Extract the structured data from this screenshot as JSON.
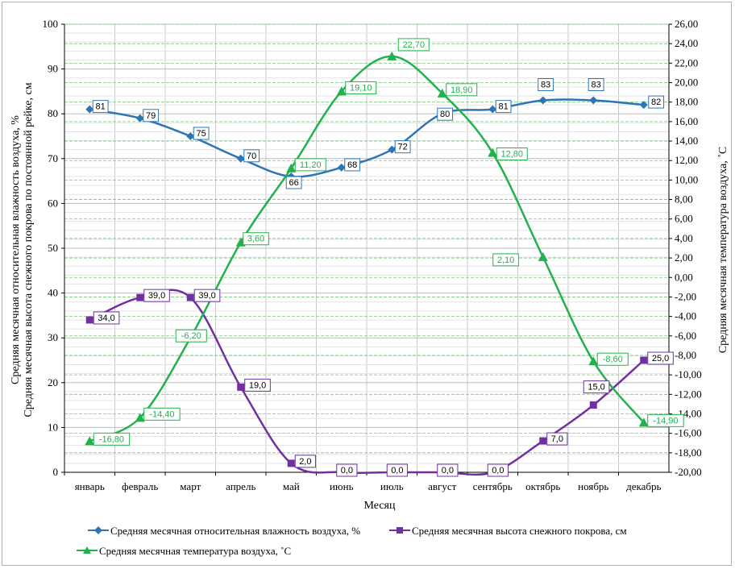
{
  "chart_data": {
    "type": "line",
    "categories": [
      "январь",
      "февраль",
      "март",
      "апрель",
      "май",
      "июнь",
      "июль",
      "август",
      "сентябрь",
      "октябрь",
      "ноябрь",
      "декабрь"
    ],
    "xlabel": "Месяц",
    "ylabel_left_line1": "Средняя месячная относительная влажность воздуха, %",
    "ylabel_left_line2": "Средняя месячная высота снежного покрова по постоянной рейке, см",
    "ylabel_right": "Средняя месячная температура воздуха, ˚С",
    "ylim_left": [
      0,
      100
    ],
    "ylim_right": [
      -20,
      26
    ],
    "left_ticks": [
      "0",
      "10",
      "20",
      "30",
      "40",
      "50",
      "60",
      "70",
      "80",
      "90",
      "100"
    ],
    "right_ticks": [
      "-20,00",
      "-18,00",
      "-16,00",
      "-14,00",
      "-12,00",
      "-10,00",
      "-8,00",
      "-6,00",
      "-4,00",
      "-2,00",
      "0,00",
      "2,00",
      "4,00",
      "6,00",
      "8,00",
      "10,00",
      "12,00",
      "14,00",
      "16,00",
      "18,00",
      "20,00",
      "22,00",
      "24,00",
      "26,00"
    ],
    "grid": true,
    "legend_position": "bottom",
    "series": [
      {
        "name": "Средняя месячная относительная влажность воздуха, %",
        "axis": "left",
        "marker": "diamond",
        "color": "#2e75b6",
        "values": [
          81,
          79,
          75,
          70,
          66,
          68,
          72,
          80,
          81,
          83,
          83,
          82
        ],
        "labels": [
          "81",
          "79",
          "75",
          "70",
          "66",
          "68",
          "72",
          "80",
          "81",
          "83",
          "83",
          "82"
        ]
      },
      {
        "name": "Средняя месячная высота снежного покрова, см",
        "axis": "left",
        "marker": "square",
        "color": "#7030a0",
        "values": [
          34.0,
          39.0,
          39.0,
          19.0,
          2.0,
          0.0,
          0.0,
          0.0,
          0.0,
          7.0,
          15.0,
          25.0
        ],
        "labels": [
          "34,0",
          "39,0",
          "39,0",
          "19,0",
          "2,0",
          "0,0",
          "0,0",
          "0,0",
          "0,0",
          "7,0",
          "15,0",
          "25,0"
        ]
      },
      {
        "name": "Средняя месячная температура воздуха, ˚С",
        "axis": "right",
        "marker": "triangle",
        "color": "#22b14c",
        "values": [
          -16.8,
          -14.4,
          -6.2,
          3.6,
          11.2,
          19.1,
          22.7,
          18.9,
          12.8,
          2.1,
          -8.6,
          -14.9
        ],
        "labels": [
          "-16,80",
          "-14,40",
          "-6,20",
          "3,60",
          "11,20",
          "19,10",
          "22,70",
          "18,90",
          "12,80",
          "2,10",
          "-8,60",
          "-14,90"
        ]
      }
    ]
  }
}
